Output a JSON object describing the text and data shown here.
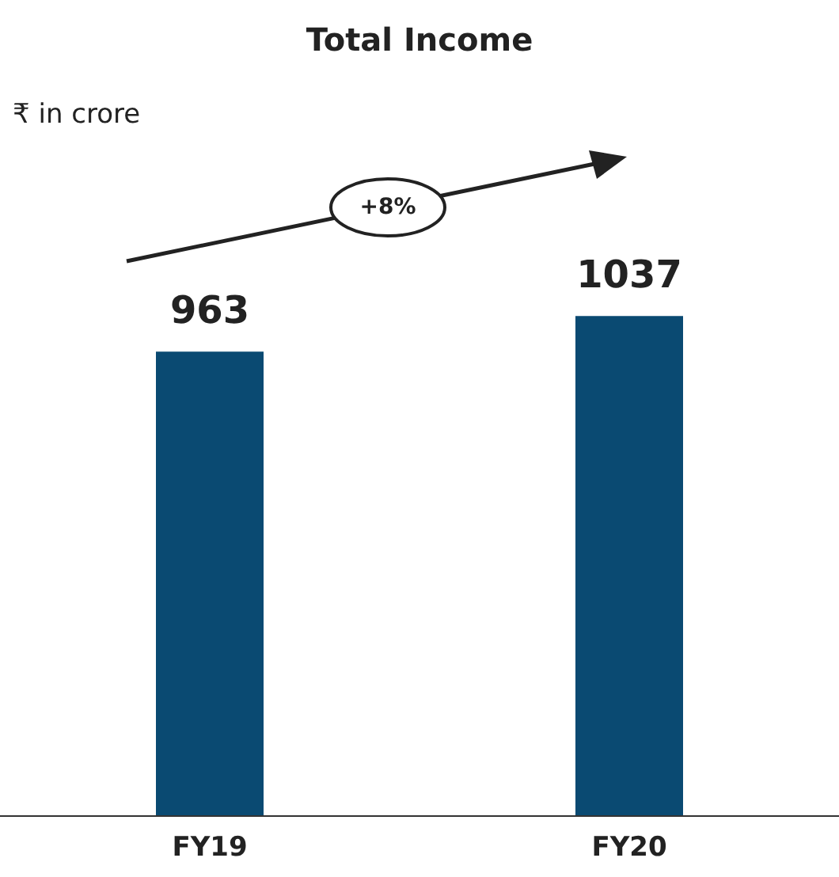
{
  "chart_data": {
    "type": "bar",
    "title": "Total Income",
    "subtitle": "₹ in crore",
    "categories": [
      "FY19",
      "FY20"
    ],
    "values": [
      963,
      1037
    ],
    "color": "#0a4a72",
    "data_labels": true,
    "grid": false,
    "annotations": [
      "+8%"
    ]
  }
}
